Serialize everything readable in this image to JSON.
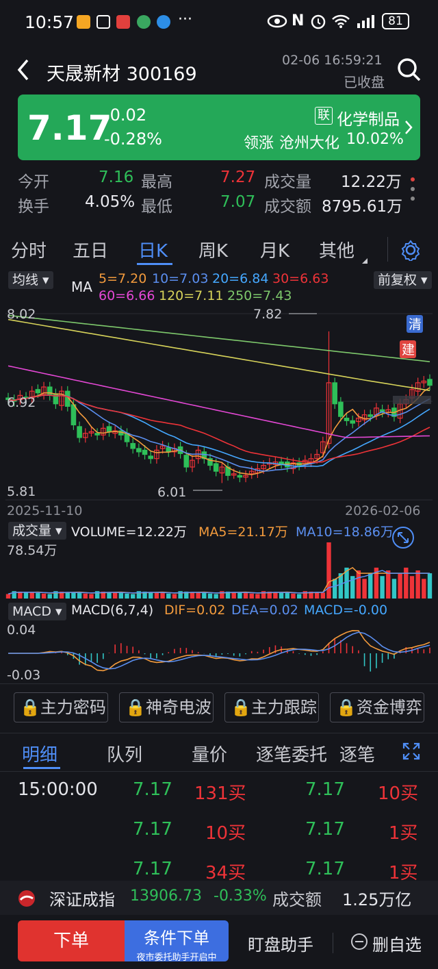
{
  "status": {
    "time": "10:57",
    "battery": "81",
    "more": "···"
  },
  "header": {
    "title": "天晟新材 300169",
    "datetime": "02-06 16:59:21",
    "market_status": "已收盘"
  },
  "quote": {
    "price": "7.17",
    "change": "-0.02",
    "change_pct": "-0.28%",
    "industry_tag": "联",
    "industry": "化学制品",
    "leader_label": "领涨",
    "leader_name": "沧州大化",
    "leader_pct": "10.02%"
  },
  "stats": {
    "open_label": "今开",
    "open": "7.16",
    "high_label": "最高",
    "high": "7.27",
    "vol_label": "成交量",
    "vol": "12.22万",
    "turnover_label": "换手",
    "turnover": "4.05%",
    "low_label": "最低",
    "low": "7.07",
    "amount_label": "成交额",
    "amount": "8795.61万"
  },
  "tabs": [
    "分时",
    "五日",
    "日K",
    "周K",
    "月K",
    "其他"
  ],
  "active_tab": "日K",
  "kline": {
    "indicator_dropdown": "均线",
    "ma_label": "MA",
    "ma5": "5=7.20",
    "ma10": "10=7.03",
    "ma20": "20=6.84",
    "ma30": "30=6.63",
    "ma60": "60=6.66",
    "ma120": "120=7.11",
    "ma250": "250=7.43",
    "adjust_dropdown": "前复权",
    "y_top": "8.02",
    "y_mid": "6.92",
    "y_bottom": "5.81",
    "high_mark": "7.82",
    "low_mark": "6.01",
    "date_start": "2025-11-10",
    "date_end": "2026-02-06",
    "badge_qing": "清",
    "badge_jian": "建"
  },
  "volume": {
    "dropdown": "成交量",
    "vol_label": "VOLUME=12.22万",
    "ma5": "MA5=21.17万",
    "ma10": "MA10=18.86万",
    "y_top": "78.54万"
  },
  "macd": {
    "dropdown": "MACD",
    "params": "MACD(6,7,4)",
    "dif": "DIF=0.02",
    "dea": "DEA=0.02",
    "macd": "MACD=-0.00",
    "y_top": "0.04",
    "y_bottom": "-0.03"
  },
  "locked_features": [
    "主力密码",
    "神奇电波",
    "主力跟踪",
    "资金博弈"
  ],
  "detail_tabs": [
    "明细",
    "队列",
    "量价",
    "逐笔委托",
    "逐笔"
  ],
  "detail_rows": [
    {
      "time": "15:00:00",
      "p1": "7.17",
      "v1": "131买",
      "p2": "7.17",
      "v2": "10买"
    },
    {
      "time": "",
      "p1": "7.17",
      "v1": "10买",
      "p2": "7.17",
      "v2": "1买"
    },
    {
      "time": "",
      "p1": "7.17",
      "v1": "34买",
      "p2": "7.17",
      "v2": "1买"
    }
  ],
  "index_bar": {
    "name": "深证成指",
    "value": "13906.73",
    "pct": "-0.33%",
    "amount_label": "成交额",
    "amount": "1.25万亿"
  },
  "bottom": {
    "order": "下单",
    "cond_order": "条件下单",
    "cond_sub": "夜市委托助手开启中",
    "assistant": "盯盘助手",
    "remove": "删自选"
  },
  "colors": {
    "up": "#ee3338",
    "down": "#2fbf59",
    "banner": "#24a858",
    "accent": "#4f8ef7"
  }
}
